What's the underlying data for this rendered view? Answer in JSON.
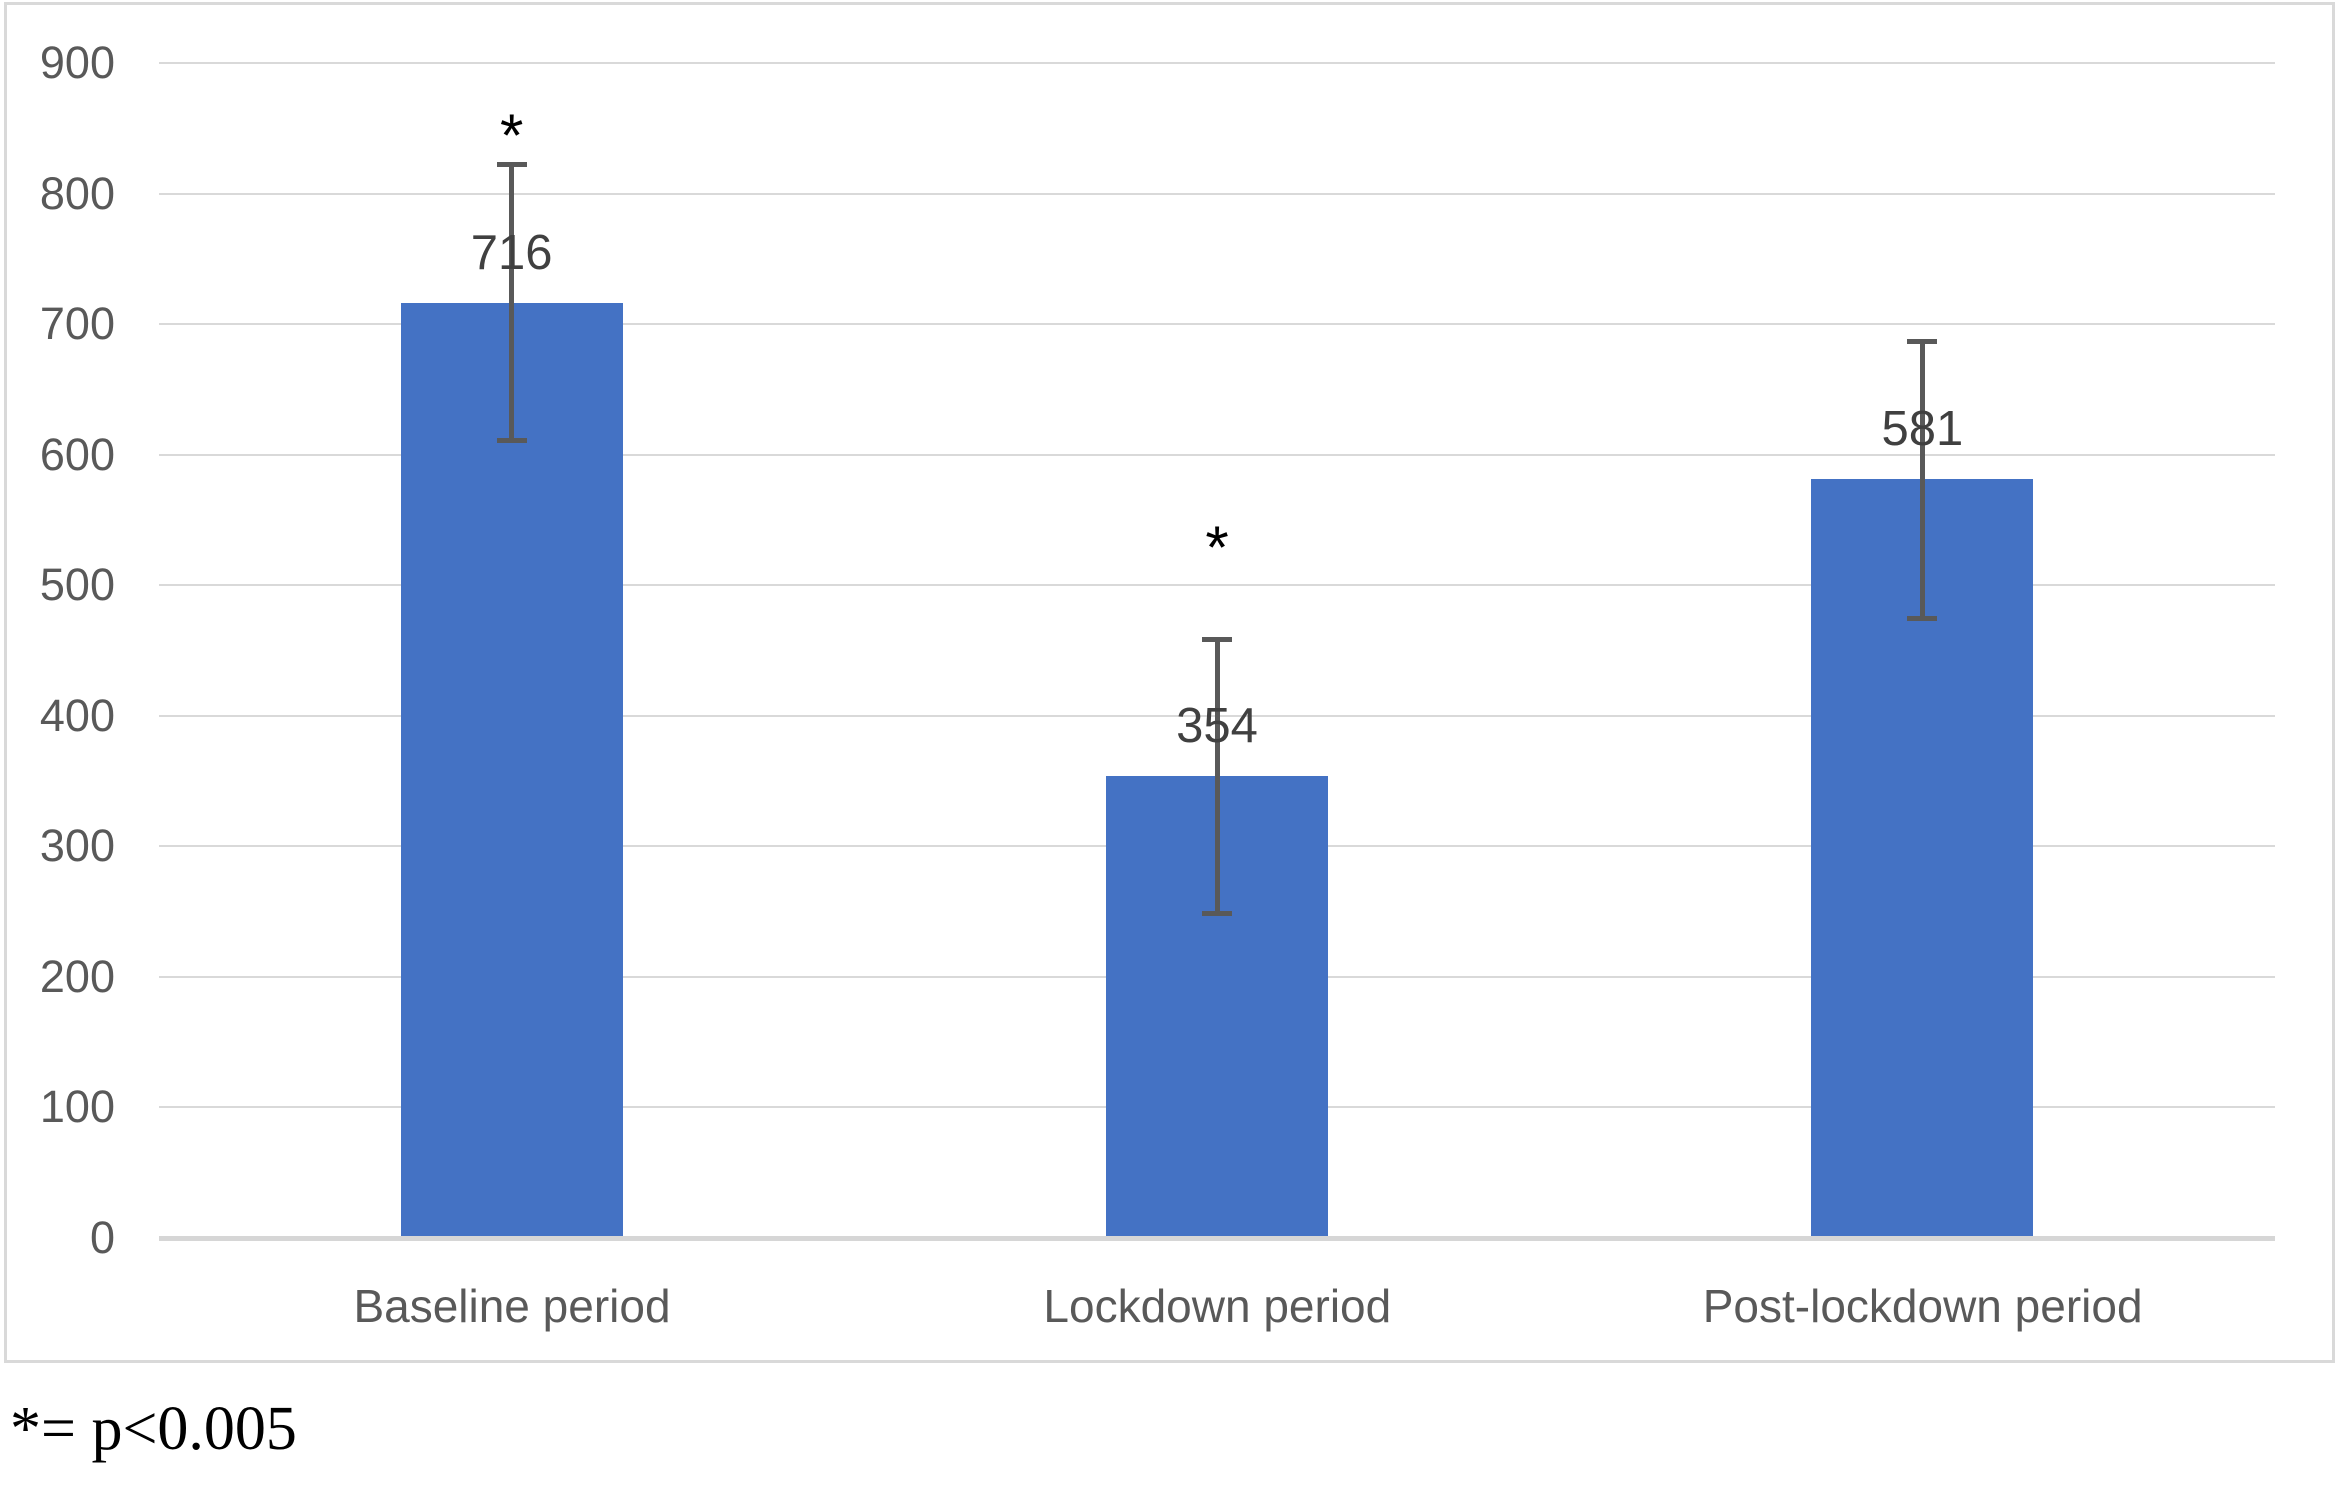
{
  "chart_data": {
    "type": "bar",
    "title": "",
    "xlabel": "",
    "ylabel": "",
    "categories": [
      "Baseline period",
      "Lockdown period",
      "Post-lockdown period"
    ],
    "values": [
      716,
      354,
      581
    ],
    "data_labels": [
      "716",
      "354",
      "581"
    ],
    "error_bars": {
      "low": [
        611,
        249,
        475
      ],
      "high": [
        823,
        459,
        687
      ]
    },
    "significance_markers": [
      {
        "category_index": 0,
        "symbol": "*",
        "y_value": 852
      },
      {
        "category_index": 1,
        "symbol": "*",
        "y_value": 536
      }
    ],
    "ylim": [
      0,
      900
    ],
    "ytick_step": 100,
    "ytick_labels": [
      "0",
      "100",
      "200",
      "300",
      "400",
      "500",
      "600",
      "700",
      "800",
      "900"
    ],
    "grid": "horizontal",
    "legend": "none",
    "footnote": "*= p<0.005",
    "colors": {
      "bar_fill": "#4472C4",
      "gridline": "#D9D9D9",
      "axis_line": "#D6D6D6",
      "error_bar": "#595959",
      "tick_label": "#595959",
      "category_label": "#595959",
      "data_label": "#404040",
      "significance": "#000000",
      "frame_border": "#D9D9D9"
    }
  }
}
